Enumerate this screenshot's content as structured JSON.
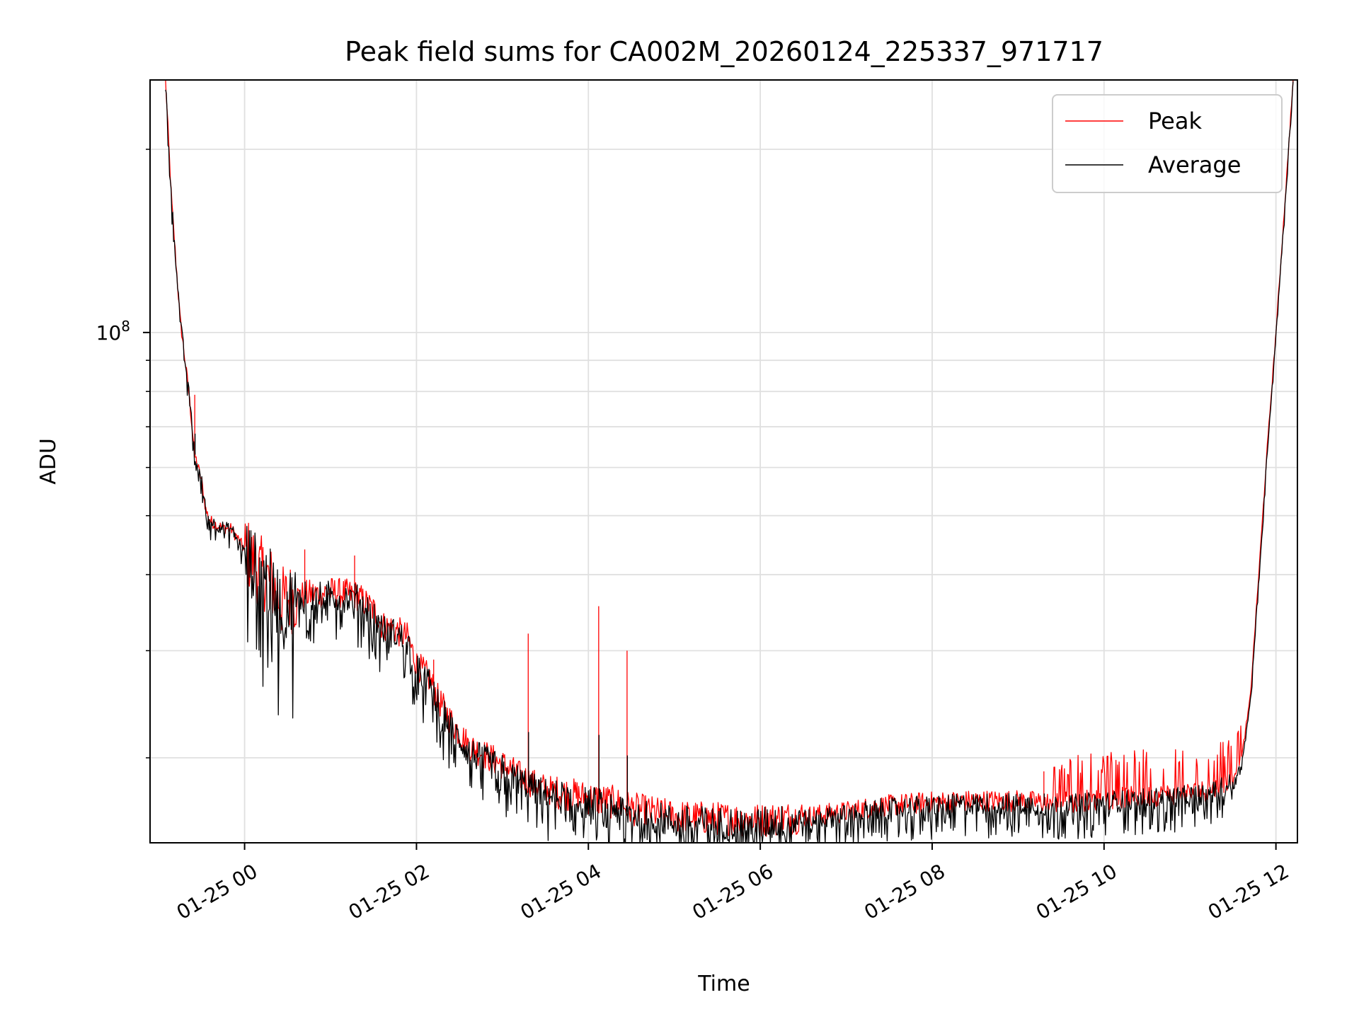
{
  "chart_data": {
    "type": "line",
    "title": "Peak field sums for CA002M_20260124_225337_971717",
    "xlabel": "Time",
    "ylabel": "ADU",
    "yscale": "log",
    "ylim": [
      14500000,
      260000000
    ],
    "xlim_hours": [
      -1.1,
      12.25
    ],
    "grid": true,
    "legend_position": "top-right",
    "x_ticks": [
      {
        "hour": 0,
        "label": "01-25 00"
      },
      {
        "hour": 2,
        "label": "01-25 02"
      },
      {
        "hour": 4,
        "label": "01-25 04"
      },
      {
        "hour": 6,
        "label": "01-25 06"
      },
      {
        "hour": 8,
        "label": "01-25 08"
      },
      {
        "hour": 10,
        "label": "01-25 10"
      },
      {
        "hour": 12,
        "label": "01-25 12"
      }
    ],
    "y_major_tick": {
      "value": 100000000,
      "label_base": "10",
      "label_exp": "8"
    },
    "y_minor_ticks": [
      20000000,
      30000000,
      40000000,
      50000000,
      60000000,
      70000000,
      80000000,
      90000000,
      200000000
    ],
    "series": [
      {
        "name": "Peak",
        "color": "#ff0000",
        "x_hours": [
          -0.92,
          -0.85,
          -0.75,
          -0.65,
          -0.58,
          -0.5,
          -0.45,
          -0.4,
          -0.3,
          -0.15,
          0,
          0.05,
          0.15,
          0.3,
          0.42,
          0.5,
          0.7,
          1.0,
          1.3,
          1.5,
          1.6,
          1.75,
          1.9,
          2.0,
          2.15,
          2.25,
          2.4,
          2.6,
          2.8,
          3.0,
          3.2,
          3.4,
          3.6,
          3.8,
          4.0,
          4.3,
          4.5,
          4.8,
          5.0,
          5.5,
          6.0,
          6.5,
          7.0,
          7.3,
          7.7,
          8.0,
          8.5,
          9.0,
          9.3,
          9.5,
          10.0,
          10.5,
          11.0,
          11.3,
          11.5,
          11.6,
          11.7,
          11.8,
          11.9,
          12.0,
          12.1,
          12.2
        ],
        "values": [
          260000000,
          165000000,
          105000000,
          80000000,
          63000000,
          57000000,
          51000000,
          49000000,
          48000000,
          47500000,
          44000000,
          43000000,
          41000000,
          39000000,
          36000000,
          36500000,
          37000000,
          37500000,
          37000000,
          35000000,
          33000000,
          32500000,
          31500000,
          28500000,
          27000000,
          25000000,
          23000000,
          21000000,
          20200000,
          19500000,
          18700000,
          18000000,
          17600000,
          17400000,
          17200000,
          16900000,
          16500000,
          16200000,
          16000000,
          15900000,
          15800000,
          16000000,
          16300000,
          16600000,
          16800000,
          16900000,
          17000000,
          17000000,
          16900000,
          16900000,
          17100000,
          17300000,
          17500000,
          17800000,
          18500000,
          20000000,
          25000000,
          40000000,
          65000000,
          100000000,
          160000000,
          260000000
        ]
      },
      {
        "name": "Average",
        "color": "#000000",
        "x_hours": [
          -0.92,
          -0.85,
          -0.75,
          -0.65,
          -0.58,
          -0.5,
          -0.45,
          -0.4,
          -0.3,
          -0.15,
          0,
          0.05,
          0.15,
          0.3,
          0.42,
          0.5,
          0.7,
          1.0,
          1.3,
          1.5,
          1.6,
          1.75,
          1.9,
          2.0,
          2.15,
          2.25,
          2.4,
          2.6,
          2.8,
          3.0,
          3.2,
          3.4,
          3.6,
          3.8,
          4.0,
          4.3,
          4.5,
          4.8,
          5.0,
          5.5,
          6.0,
          6.5,
          7.0,
          7.3,
          7.7,
          8.0,
          8.5,
          9.0,
          9.3,
          9.5,
          10.0,
          10.5,
          11.0,
          11.3,
          11.5,
          11.6,
          11.7,
          11.8,
          11.9,
          12.0,
          12.1,
          12.2
        ],
        "values": [
          260000000,
          165000000,
          105000000,
          80000000,
          63000000,
          57000000,
          51000000,
          49000000,
          48000000,
          47500000,
          43500000,
          42500000,
          40500000,
          38500000,
          35500000,
          36000000,
          36500000,
          37000000,
          36500000,
          34500000,
          32500000,
          32000000,
          31000000,
          28000000,
          26500000,
          24500000,
          22500000,
          20500000,
          19800000,
          19100000,
          18400000,
          17700000,
          17300000,
          17100000,
          16900000,
          16600000,
          16200000,
          15900000,
          15700000,
          15600000,
          15600000,
          15800000,
          16100000,
          16400000,
          16600000,
          16700000,
          16800000,
          16800000,
          16700000,
          16700000,
          16900000,
          17100000,
          17300000,
          17600000,
          18200000,
          19600000,
          24500000,
          39000000,
          64000000,
          99000000,
          158000000,
          260000000
        ]
      }
    ],
    "spikes": [
      {
        "hour": -0.58,
        "value": 79000000
      },
      {
        "hour": 3.3,
        "value": 32000000
      },
      {
        "hour": 4.12,
        "value": 35500000
      },
      {
        "hour": 4.45,
        "value": 30000000
      },
      {
        "hour": 1.28,
        "value": 43000000
      },
      {
        "hour": 0.7,
        "value": 44000000
      },
      {
        "hour": 2.2,
        "value": 29000000
      },
      {
        "hour": 9.3,
        "value": 19000000
      }
    ]
  }
}
